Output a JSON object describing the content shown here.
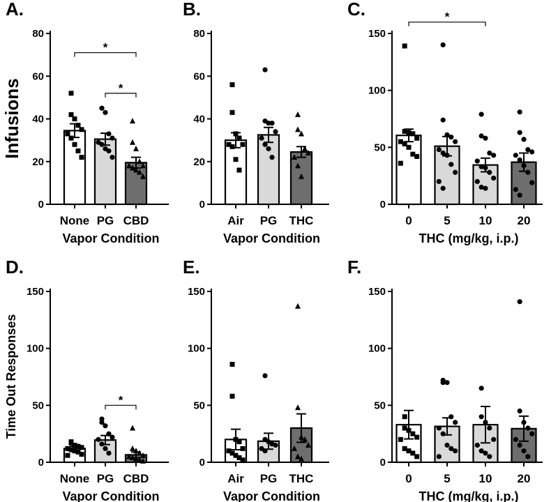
{
  "colors": {
    "none": "#ffffff",
    "light": "#d9d9d9",
    "dark": "#6e6e6e",
    "ink": "#000000"
  },
  "row_labels": {
    "top": "Infusions",
    "bottom": "Time Out Responses"
  },
  "chart_data": [
    {
      "id": "A",
      "letter": "A.",
      "type": "bar",
      "row": "top",
      "categories": [
        "None",
        "PG",
        "CBD"
      ],
      "means": [
        34.5,
        30.5,
        19.5
      ],
      "sem": [
        3.2,
        2.8,
        2.5
      ],
      "fills": [
        "none",
        "light",
        "dark"
      ],
      "points": [
        [
          52,
          42,
          40,
          37,
          35,
          33,
          31,
          28,
          25,
          22
        ],
        [
          45,
          45,
          43,
          33,
          31,
          29,
          28,
          26,
          25,
          22
        ],
        [
          39,
          29,
          26,
          20,
          18,
          18,
          17,
          16,
          15,
          13
        ]
      ],
      "markers": [
        "square",
        "circle",
        "triangle"
      ],
      "ylim": [
        0,
        80
      ],
      "yticks": [
        0,
        20,
        40,
        60,
        80
      ],
      "xlabel": "Vapor Condition",
      "sig": [
        {
          "from": 0,
          "to": 2,
          "y": 71,
          "label": "*"
        },
        {
          "from": 1,
          "to": 2,
          "y": 52,
          "label": "*"
        }
      ]
    },
    {
      "id": "B",
      "letter": "B.",
      "type": "bar",
      "row": "top",
      "categories": [
        "Air",
        "PG",
        "THC"
      ],
      "means": [
        30,
        32.5,
        24.5
      ],
      "sem": [
        3.5,
        3.5,
        2.5
      ],
      "fills": [
        "none",
        "light",
        "dark"
      ],
      "points": [
        [
          56,
          43,
          33,
          31,
          28,
          28,
          27,
          21,
          16
        ],
        [
          63,
          39,
          38,
          38,
          34,
          31,
          28,
          26,
          22
        ],
        [
          42,
          35,
          33,
          26,
          24,
          22,
          18,
          13
        ]
      ],
      "markers": [
        "square",
        "circle",
        "triangle"
      ],
      "ylim": [
        0,
        80
      ],
      "yticks": [
        0,
        20,
        40,
        60,
        80
      ],
      "xlabel": "Vapor Condition",
      "sig": []
    },
    {
      "id": "C",
      "letter": "C.",
      "type": "bar",
      "row": "top",
      "categories": [
        "0",
        "5",
        "10",
        "20"
      ],
      "means": [
        60.5,
        51,
        34.5,
        37
      ],
      "sem": [
        5.5,
        8.5,
        6,
        8
      ],
      "fills": [
        "none",
        "light",
        "light",
        "dark"
      ],
      "points": [
        [
          139,
          64,
          63,
          62,
          58,
          55,
          53,
          50,
          44,
          42,
          36
        ],
        [
          140,
          74,
          61,
          59,
          55,
          48,
          45,
          43,
          35,
          28,
          20,
          14
        ],
        [
          79,
          60,
          58,
          45,
          43,
          38,
          33,
          32,
          28,
          23,
          20,
          15,
          14
        ],
        [
          81,
          63,
          57,
          48,
          46,
          43,
          39,
          34,
          28,
          19,
          13,
          8
        ]
      ],
      "markers": [
        "square",
        "circle",
        "circle",
        "circle"
      ],
      "ylim": [
        0,
        150
      ],
      "yticks": [
        0,
        50,
        100,
        150
      ],
      "xlabel": "THC (mg/kg, i.p.)",
      "sig": [
        {
          "from": 0,
          "to": 2,
          "y": 160,
          "label": "*"
        }
      ]
    },
    {
      "id": "D",
      "letter": "D.",
      "type": "bar",
      "row": "bottom",
      "categories": [
        "None",
        "PG",
        "CBD"
      ],
      "means": [
        12,
        19.5,
        6.5
      ],
      "sem": [
        2,
        4,
        2.5
      ],
      "fills": [
        "none",
        "light",
        "dark"
      ],
      "points": [
        [
          18,
          17,
          15,
          14,
          13,
          12,
          11,
          10,
          9,
          7,
          6
        ],
        [
          38,
          35,
          32,
          25,
          22,
          20,
          16,
          12,
          8
        ],
        [
          30,
          12,
          10,
          8,
          6,
          5,
          4,
          3,
          2,
          1
        ]
      ],
      "markers": [
        "square",
        "circle",
        "triangle"
      ],
      "ylim": [
        0,
        150
      ],
      "yticks": [
        0,
        50,
        100,
        150
      ],
      "xlabel": "Vapor Condition",
      "sig": [
        {
          "from": 1,
          "to": 2,
          "y": 50,
          "label": "*"
        }
      ]
    },
    {
      "id": "E",
      "letter": "E.",
      "type": "bar",
      "row": "bottom",
      "categories": [
        "Air",
        "PG",
        "THC"
      ],
      "means": [
        20,
        18.5,
        30
      ],
      "sem": [
        9,
        7,
        12.5
      ],
      "fills": [
        "none",
        "light",
        "dark"
      ],
      "points": [
        [
          86,
          58,
          20,
          18,
          12,
          10,
          8,
          6,
          4,
          2
        ],
        [
          76,
          20,
          18,
          16,
          15,
          12,
          10
        ],
        [
          137,
          48,
          22,
          20,
          15,
          12,
          5,
          3
        ]
      ],
      "markers": [
        "square",
        "circle",
        "triangle"
      ],
      "ylim": [
        0,
        150
      ],
      "yticks": [
        0,
        50,
        100,
        150
      ],
      "xlabel": "Vapor Condition",
      "sig": []
    },
    {
      "id": "F",
      "letter": "F.",
      "type": "bar",
      "row": "bottom",
      "categories": [
        "0",
        "5",
        "10",
        "20"
      ],
      "means": [
        33,
        31.5,
        33,
        29.5
      ],
      "sem": [
        12.5,
        7.5,
        16,
        11
      ],
      "fills": [
        "none",
        "light",
        "light",
        "dark"
      ],
      "points": [
        [
          40,
          30,
          28,
          25,
          22,
          20,
          12,
          10,
          8,
          5
        ],
        [
          72,
          70,
          70,
          40,
          35,
          30,
          25,
          15,
          12,
          10,
          5
        ],
        [
          65,
          40,
          35,
          30,
          20,
          15,
          10,
          8,
          5
        ],
        [
          141,
          45,
          35,
          30,
          25,
          20,
          15,
          10,
          5
        ]
      ],
      "markers": [
        "square",
        "circle",
        "circle",
        "circle"
      ],
      "ylim": [
        0,
        150
      ],
      "yticks": [
        0,
        50,
        100,
        150
      ],
      "xlabel": "THC (mg/kg, i.p.)",
      "sig": []
    }
  ]
}
